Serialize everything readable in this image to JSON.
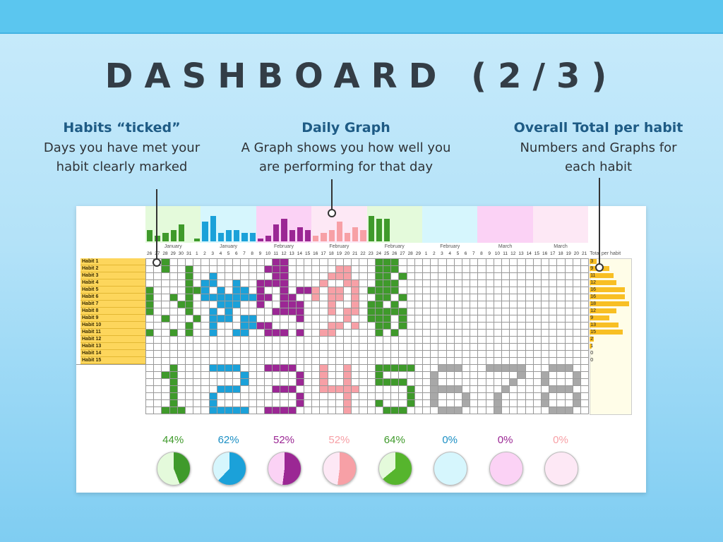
{
  "title": "DASHBOARD (2/3)",
  "callouts": [
    {
      "heading": "Habits “ticked”",
      "body1": "Days you have met your",
      "body2": "habit clearly marked"
    },
    {
      "heading": "Daily Graph",
      "body1": "A Graph shows you how well you",
      "body2": "are performing for that day"
    },
    {
      "heading": "Overall Total per habit",
      "body1": "Numbers and Graphs for",
      "body2": "each habit"
    }
  ],
  "weeks": [
    {
      "month": "January",
      "days": [
        "26",
        "27",
        "28",
        "29",
        "30",
        "31",
        "1"
      ],
      "band": "#e4fadb",
      "fill": "#3f9a2b",
      "bars": [
        4,
        2,
        3,
        4,
        6,
        0,
        1
      ],
      "pct": "44%",
      "pct_color": "#3f9a2b",
      "pie_value": 0.44,
      "pie_bg": "#e4fadb"
    },
    {
      "month": "January",
      "days": [
        "2",
        "3",
        "4",
        "5",
        "6",
        "7",
        "8"
      ],
      "band": "#d6f6fd",
      "fill": "#1ba1d9",
      "bars": [
        7,
        9,
        3,
        4,
        4,
        3,
        3
      ],
      "pct": "62%",
      "pct_color": "#1b8fc4",
      "pie_value": 0.62,
      "pie_bg": "#d6f6fd"
    },
    {
      "month": "February",
      "days": [
        "9",
        "10",
        "11",
        "12",
        "13",
        "14",
        "15"
      ],
      "band": "#fbd2f5",
      "fill": "#9b2794",
      "bars": [
        1,
        2,
        6,
        8,
        4,
        5,
        4
      ],
      "pct": "52%",
      "pct_color": "#9b2794",
      "pie_value": 0.52,
      "pie_bg": "#fbd2f5"
    },
    {
      "month": "February",
      "days": [
        "16",
        "17",
        "18",
        "19",
        "20",
        "21",
        "22"
      ],
      "band": "#fde8f5",
      "fill": "#f7a0a6",
      "bars": [
        2,
        3,
        4,
        7,
        3,
        5,
        4
      ],
      "pct": "52%",
      "pct_color": "#f7a0a6",
      "pie_value": 0.52,
      "pie_bg": "#fde8f5"
    },
    {
      "month": "February",
      "days": [
        "23",
        "24",
        "25",
        "26",
        "27",
        "28",
        "29"
      ],
      "band": "#e4fadb",
      "fill": "#3f9a2b",
      "bars": [
        9,
        8,
        8,
        0,
        0,
        0,
        0
      ],
      "pct": "64%",
      "pct_color": "#3f9a2b",
      "pie_value": 0.64,
      "pie_bg": "#e4fadb"
    },
    {
      "month": "February",
      "days": [
        "1",
        "2",
        "3",
        "4",
        "5",
        "6",
        "7"
      ],
      "band": "#d6f6fd",
      "fill": "#1ba1d9",
      "bars": [
        0,
        0,
        0,
        0,
        0,
        0,
        0
      ],
      "pct": "0%",
      "pct_color": "#1b8fc4",
      "pie_value": 0,
      "pie_bg": "#d6f6fd"
    },
    {
      "month": "March",
      "days": [
        "8",
        "9",
        "10",
        "11",
        "12",
        "13",
        "14"
      ],
      "band": "#fbd2f5",
      "fill": "#9b2794",
      "bars": [
        0,
        0,
        0,
        0,
        0,
        0,
        0
      ],
      "pct": "0%",
      "pct_color": "#9b2794",
      "pie_value": 0,
      "pie_bg": "#fbd2f5"
    },
    {
      "month": "March",
      "days": [
        "15",
        "16",
        "17",
        "18",
        "19",
        "20",
        "21"
      ],
      "band": "#fde8f5",
      "fill": "#f7a0a6",
      "bars": [
        0,
        0,
        0,
        0,
        0,
        0,
        0
      ],
      "pct": "0%",
      "pct_color": "#f7a0a6",
      "pie_value": 0,
      "pie_bg": "#fde8f5"
    }
  ],
  "habits": [
    "Habit 1",
    "Habit 2",
    "Habit 3",
    "Habit 4",
    "Habit 5",
    "Habit 6",
    "Habit 7",
    "Habit 8",
    "Habit 9",
    "Habit 10",
    "Habit 11",
    "Habit 12",
    "Habit 13",
    "Habit 14",
    "Habit 15"
  ],
  "totals_label": "Total per habit",
  "totals": [
    3,
    9,
    11,
    12,
    16,
    16,
    18,
    12,
    9,
    13,
    15,
    2,
    1,
    0,
    0
  ],
  "pie_green": "#56b52d",
  "colors": {
    "number_fill": "#a8a8a8",
    "habit_bg": "#fdd65c",
    "totals_bg": "#fffde8",
    "total_bar": "#f8bf24"
  }
}
